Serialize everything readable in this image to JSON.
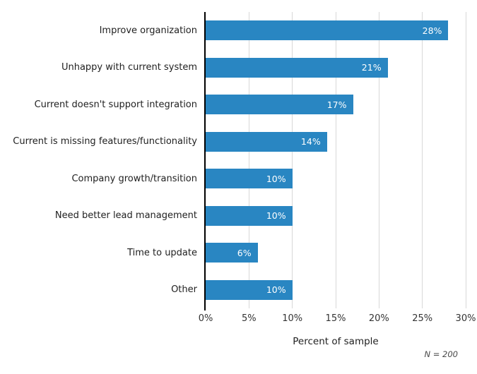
{
  "chart_data": {
    "type": "bar",
    "orientation": "horizontal",
    "title": "",
    "categories": [
      "Improve organization",
      "Unhappy with current system",
      "Current doesn't support integration",
      "Current is missing features/functionality",
      "Company growth/transition",
      "Need better lead management",
      "Time to update",
      "Other"
    ],
    "values": [
      28,
      21,
      17,
      14,
      10,
      10,
      6,
      10
    ],
    "value_labels": [
      "28%",
      "21%",
      "17%",
      "14%",
      "10%",
      "10%",
      "6%",
      "10%"
    ],
    "xlabel": "Percent of sample",
    "xlim": [
      0,
      30
    ],
    "xticks": [
      0,
      5,
      10,
      15,
      20,
      25,
      30
    ],
    "xtick_labels": [
      "0%",
      "5%",
      "10%",
      "15%",
      "20%",
      "25%",
      "30%"
    ],
    "grid": "vertical",
    "legend": "none",
    "note": "N = 200",
    "colors": {
      "bar": "#2986c2",
      "value_text": "#ffffff",
      "grid": "#d8d8d8",
      "axis": "#000000",
      "category_label": "#1f1f1f",
      "tick_label": "#333333",
      "note_text": "#4a4a4a"
    }
  }
}
